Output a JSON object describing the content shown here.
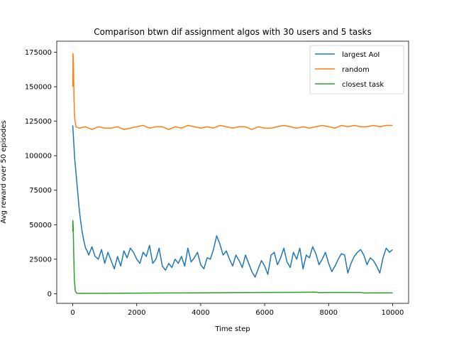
{
  "chart_data": {
    "type": "line",
    "title": "Comparison btwn dif assignment algos with 30 users and 5 tasks",
    "xlabel": "Time step",
    "ylabel": "Avg reward over 50 episodes",
    "xlim": [
      -500,
      10500
    ],
    "ylim": [
      -7000,
      183000
    ],
    "xticks": [
      0,
      2000,
      4000,
      6000,
      8000,
      10000
    ],
    "yticks": [
      0,
      25000,
      50000,
      75000,
      100000,
      125000,
      150000,
      175000
    ],
    "grid": false,
    "legend": "top-right",
    "series": [
      {
        "name": "largest AoI",
        "color": "#1f77b4",
        "x": [
          0,
          10,
          30,
          60,
          100,
          150,
          200,
          250,
          300,
          350,
          400,
          450,
          500,
          600,
          700,
          800,
          900,
          1000,
          1100,
          1200,
          1300,
          1400,
          1500,
          1600,
          1700,
          1800,
          1900,
          2000,
          2100,
          2200,
          2300,
          2400,
          2500,
          2600,
          2700,
          2800,
          2900,
          3000,
          3100,
          3200,
          3300,
          3400,
          3500,
          3600,
          3700,
          3800,
          3900,
          4000,
          4100,
          4200,
          4300,
          4400,
          4500,
          4600,
          4700,
          4800,
          4900,
          5000,
          5100,
          5200,
          5300,
          5400,
          5500,
          5600,
          5700,
          5800,
          5900,
          6000,
          6100,
          6200,
          6300,
          6400,
          6500,
          6600,
          6700,
          6800,
          6900,
          7000,
          7100,
          7200,
          7300,
          7400,
          7500,
          7600,
          7700,
          7800,
          7900,
          8000,
          8100,
          8200,
          8300,
          8400,
          8500,
          8600,
          8700,
          8800,
          8900,
          9000,
          9100,
          9200,
          9300,
          9400,
          9500,
          9600,
          9700,
          9800,
          9900,
          10000
        ],
        "values": [
          122000,
          118000,
          110000,
          98000,
          88000,
          75000,
          62000,
          52000,
          44000,
          38000,
          33000,
          31000,
          28000,
          34000,
          27000,
          25000,
          32000,
          22000,
          30000,
          24000,
          18000,
          27000,
          20000,
          31000,
          26000,
          33000,
          30000,
          25000,
          22000,
          30000,
          27000,
          35000,
          22000,
          25000,
          33000,
          20000,
          17000,
          22000,
          19000,
          25000,
          22000,
          27000,
          20000,
          33000,
          23000,
          26000,
          30000,
          21000,
          18000,
          26000,
          25000,
          32000,
          42000,
          36000,
          28000,
          31000,
          25000,
          20000,
          28000,
          24000,
          19000,
          28000,
          22000,
          16000,
          12000,
          18000,
          24000,
          20000,
          14000,
          28000,
          30000,
          21000,
          26000,
          33000,
          23000,
          19000,
          30000,
          25000,
          33000,
          18000,
          28000,
          26000,
          34000,
          29000,
          21000,
          25000,
          30000,
          22000,
          16000,
          20000,
          25000,
          29000,
          28000,
          15000,
          22000,
          27000,
          30000,
          32000,
          28000,
          21000,
          26000,
          24000,
          20000,
          15000,
          26000,
          33000,
          30000,
          32000
        ]
      },
      {
        "name": "random",
        "color": "#ff7f0e",
        "x": [
          0,
          10,
          20,
          40,
          60,
          80,
          100,
          200,
          400,
          600,
          800,
          1000,
          1200,
          1400,
          1600,
          1800,
          2000,
          2200,
          2400,
          2600,
          2800,
          3000,
          3200,
          3400,
          3600,
          3800,
          4000,
          4200,
          4400,
          4600,
          4800,
          5000,
          5200,
          5400,
          5600,
          5800,
          6000,
          6200,
          6400,
          6600,
          6800,
          7000,
          7200,
          7400,
          7600,
          7800,
          8000,
          8200,
          8400,
          8600,
          8800,
          9000,
          9200,
          9400,
          9600,
          9800,
          10000
        ],
        "values": [
          150000,
          174000,
          168000,
          140000,
          128000,
          124000,
          121000,
          120000,
          121000,
          119000,
          121000,
          120000,
          120000,
          121000,
          119000,
          120000,
          121000,
          122000,
          120000,
          121000,
          121000,
          119000,
          121000,
          120000,
          122000,
          121000,
          120000,
          121000,
          120000,
          122000,
          121000,
          120000,
          121000,
          121000,
          119000,
          121000,
          120000,
          120000,
          121000,
          122000,
          121000,
          120000,
          121000,
          120000,
          121000,
          122000,
          121000,
          120000,
          122000,
          121000,
          122000,
          121000,
          121000,
          122000,
          121000,
          122000,
          122000
        ]
      },
      {
        "name": "closest task",
        "color": "#2ca02c",
        "x": [
          0,
          5,
          15,
          30,
          50,
          80,
          120,
          200,
          1000,
          2000,
          3000,
          4000,
          5000,
          6000,
          7000,
          7600,
          7700,
          8000,
          9000,
          9100,
          10000
        ],
        "values": [
          45000,
          53000,
          48000,
          30000,
          10000,
          2000,
          400,
          200,
          300,
          400,
          500,
          600,
          800,
          900,
          1000,
          1100,
          800,
          900,
          900,
          500,
          600
        ]
      }
    ]
  }
}
